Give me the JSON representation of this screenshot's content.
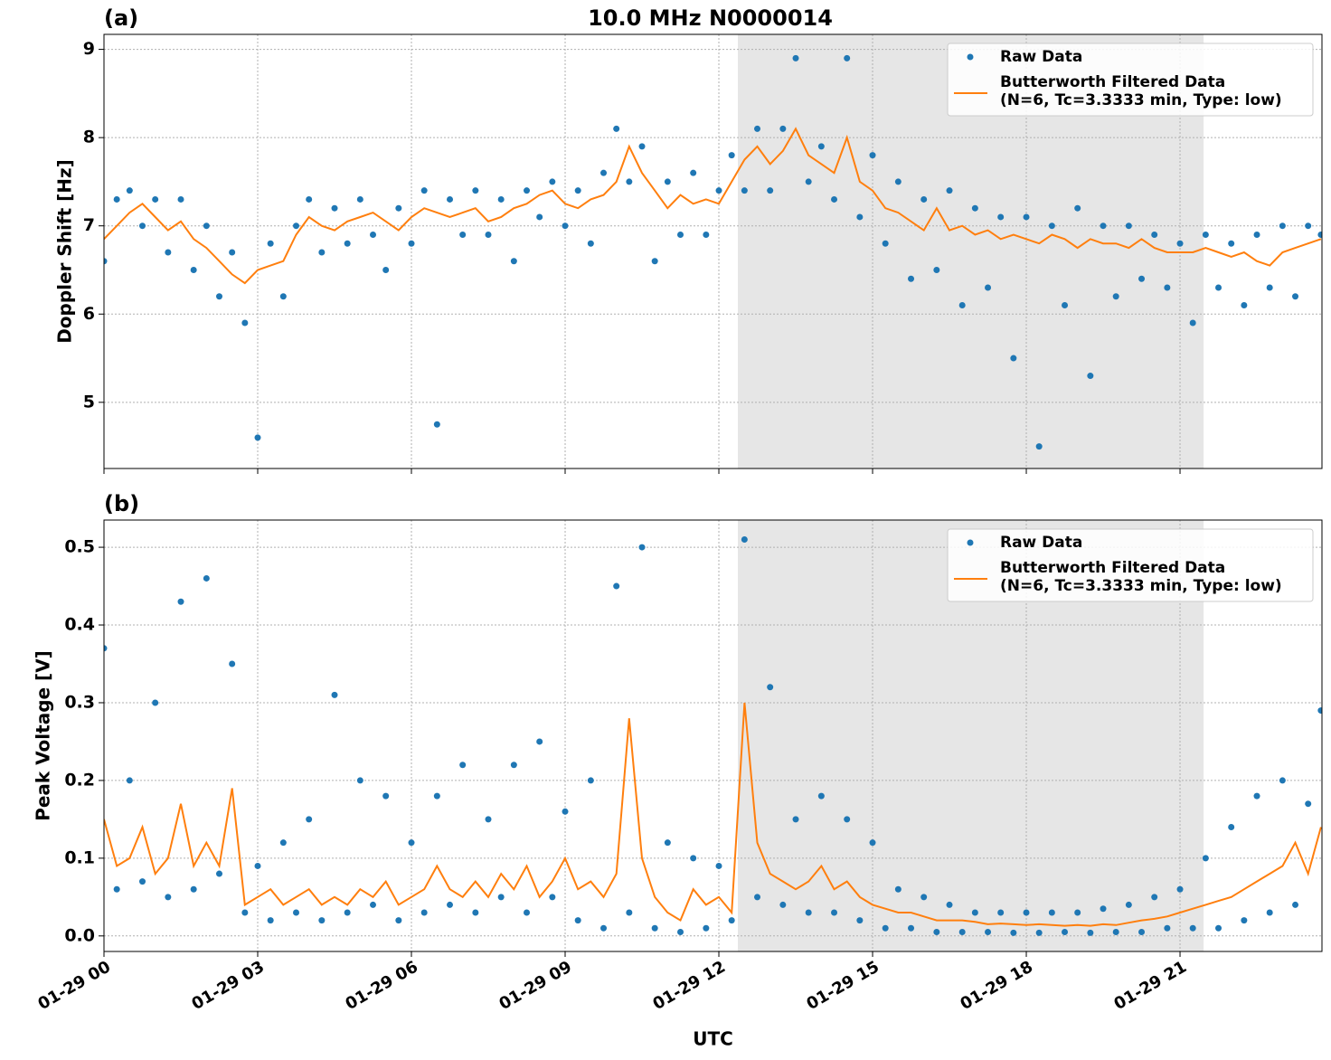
{
  "chart_data": [
    {
      "type": "line",
      "label": "(a)",
      "title": "10.0 MHz N0000014",
      "ylabel": "Doppler Shift [Hz]",
      "xlim": [
        0,
        23.77
      ],
      "xticks": [
        0,
        3,
        6,
        9,
        12,
        15,
        18,
        21
      ],
      "ylim": [
        4.25,
        9.17
      ],
      "yticks": [
        5,
        6,
        7,
        8,
        9
      ],
      "grid": true,
      "shade": [
        12.37,
        21.46
      ],
      "shade_color": "#e6e6e6",
      "legend": "upper right",
      "x": [
        0,
        0.25,
        0.5,
        0.75,
        1,
        1.25,
        1.5,
        1.75,
        2,
        2.25,
        2.5,
        2.75,
        3,
        3.25,
        3.5,
        3.75,
        4,
        4.25,
        4.5,
        4.75,
        5,
        5.25,
        5.5,
        5.75,
        6,
        6.25,
        6.5,
        6.75,
        7,
        7.25,
        7.5,
        7.75,
        8,
        8.25,
        8.5,
        8.75,
        9,
        9.25,
        9.5,
        9.75,
        10,
        10.25,
        10.5,
        10.75,
        11,
        11.25,
        11.5,
        11.75,
        12,
        12.25,
        12.5,
        12.75,
        13,
        13.25,
        13.5,
        13.75,
        14,
        14.25,
        14.5,
        14.75,
        15,
        15.25,
        15.5,
        15.75,
        16,
        16.25,
        16.5,
        16.75,
        17,
        17.25,
        17.5,
        17.75,
        18,
        18.25,
        18.5,
        18.75,
        19,
        19.25,
        19.5,
        19.75,
        20,
        20.25,
        20.5,
        20.75,
        21,
        21.25,
        21.5,
        21.75,
        22,
        22.25,
        22.5,
        22.75,
        23,
        23.25,
        23.5,
        23.75
      ],
      "series": [
        {
          "name": "Raw Data",
          "color": "#1f77b4",
          "style": "dots",
          "values": [
            6.6,
            7.3,
            7.4,
            7.0,
            7.3,
            6.7,
            7.3,
            6.5,
            7.0,
            6.2,
            6.7,
            5.9,
            4.6,
            6.8,
            6.2,
            7.0,
            7.3,
            6.7,
            7.2,
            6.8,
            7.3,
            6.9,
            6.5,
            7.2,
            6.8,
            7.4,
            4.75,
            7.3,
            6.9,
            7.4,
            6.9,
            7.3,
            6.6,
            7.4,
            7.1,
            7.5,
            7.0,
            7.4,
            6.8,
            7.6,
            8.1,
            7.5,
            7.9,
            6.6,
            7.5,
            6.9,
            7.6,
            6.9,
            7.4,
            7.8,
            7.4,
            8.1,
            7.4,
            8.1,
            8.9,
            7.5,
            7.9,
            7.3,
            8.9,
            7.1,
            7.8,
            6.8,
            7.5,
            6.4,
            7.3,
            6.5,
            7.4,
            6.1,
            7.2,
            6.3,
            7.1,
            5.5,
            7.1,
            4.5,
            7.0,
            6.1,
            7.2,
            5.3,
            7.0,
            6.2,
            7.0,
            6.4,
            6.9,
            6.3,
            6.8,
            5.9,
            6.9,
            6.3,
            6.8,
            6.1,
            6.9,
            6.3,
            7.0,
            6.2,
            7.0,
            6.9
          ]
        },
        {
          "name": "Butterworth Filtered Data\n(N=6, Tc=3.3333 min, Type: low)",
          "color": "#ff7f0e",
          "style": "line",
          "values": [
            6.85,
            7.0,
            7.15,
            7.25,
            7.1,
            6.95,
            7.05,
            6.85,
            6.75,
            6.6,
            6.45,
            6.35,
            6.5,
            6.55,
            6.6,
            6.9,
            7.1,
            7.0,
            6.95,
            7.05,
            7.1,
            7.15,
            7.05,
            6.95,
            7.1,
            7.2,
            7.15,
            7.1,
            7.15,
            7.2,
            7.05,
            7.1,
            7.2,
            7.25,
            7.35,
            7.4,
            7.25,
            7.2,
            7.3,
            7.35,
            7.5,
            7.9,
            7.6,
            7.4,
            7.2,
            7.35,
            7.25,
            7.3,
            7.25,
            7.5,
            7.75,
            7.9,
            7.7,
            7.85,
            8.1,
            7.8,
            7.7,
            7.6,
            8.0,
            7.5,
            7.4,
            7.2,
            7.15,
            7.05,
            6.95,
            7.2,
            6.95,
            7.0,
            6.9,
            6.95,
            6.85,
            6.9,
            6.85,
            6.8,
            6.9,
            6.85,
            6.75,
            6.85,
            6.8,
            6.8,
            6.75,
            6.85,
            6.75,
            6.7,
            6.7,
            6.7,
            6.75,
            6.7,
            6.65,
            6.7,
            6.6,
            6.55,
            6.7,
            6.75,
            6.8,
            6.85
          ]
        }
      ]
    },
    {
      "type": "line",
      "label": "(b)",
      "xlabel": "UTC",
      "ylabel": "Peak Voltage [V]",
      "xlim": [
        0,
        23.77
      ],
      "xticks": [
        {
          "value": 0,
          "label": "01-29 00"
        },
        {
          "value": 3,
          "label": "01-29 03"
        },
        {
          "value": 6,
          "label": "01-29 06"
        },
        {
          "value": 9,
          "label": "01-29 09"
        },
        {
          "value": 12,
          "label": "01-29 12"
        },
        {
          "value": 15,
          "label": "01-29 15"
        },
        {
          "value": 18,
          "label": "01-29 18"
        },
        {
          "value": 21,
          "label": "01-29 21"
        }
      ],
      "ylim": [
        -0.02,
        0.535
      ],
      "yticks": [
        {
          "value": 0,
          "label": "0.0"
        },
        0.1,
        0.2,
        0.3,
        0.4,
        0.5
      ],
      "grid": true,
      "shade": [
        12.37,
        21.46
      ],
      "shade_color": "#e6e6e6",
      "legend": "upper right",
      "x": [
        0,
        0.25,
        0.5,
        0.75,
        1,
        1.25,
        1.5,
        1.75,
        2,
        2.25,
        2.5,
        2.75,
        3,
        3.25,
        3.5,
        3.75,
        4,
        4.25,
        4.5,
        4.75,
        5,
        5.25,
        5.5,
        5.75,
        6,
        6.25,
        6.5,
        6.75,
        7,
        7.25,
        7.5,
        7.75,
        8,
        8.25,
        8.5,
        8.75,
        9,
        9.25,
        9.5,
        9.75,
        10,
        10.25,
        10.5,
        10.75,
        11,
        11.25,
        11.5,
        11.75,
        12,
        12.25,
        12.5,
        12.75,
        13,
        13.25,
        13.5,
        13.75,
        14,
        14.25,
        14.5,
        14.75,
        15,
        15.25,
        15.5,
        15.75,
        16,
        16.25,
        16.5,
        16.75,
        17,
        17.25,
        17.5,
        17.75,
        18,
        18.25,
        18.5,
        18.75,
        19,
        19.25,
        19.5,
        19.75,
        20,
        20.25,
        20.5,
        20.75,
        21,
        21.25,
        21.5,
        21.75,
        22,
        22.25,
        22.5,
        22.75,
        23,
        23.25,
        23.5,
        23.75
      ],
      "series": [
        {
          "name": "Raw Data",
          "color": "#1f77b4",
          "style": "dots",
          "values": [
            0.37,
            0.06,
            0.2,
            0.07,
            0.3,
            0.05,
            0.43,
            0.06,
            0.46,
            0.08,
            0.35,
            0.03,
            0.09,
            0.02,
            0.12,
            0.03,
            0.15,
            0.02,
            0.31,
            0.03,
            0.2,
            0.04,
            0.18,
            0.02,
            0.12,
            0.03,
            0.18,
            0.04,
            0.22,
            0.03,
            0.15,
            0.05,
            0.22,
            0.03,
            0.25,
            0.05,
            0.16,
            0.02,
            0.2,
            0.01,
            0.45,
            0.03,
            0.5,
            0.01,
            0.12,
            0.005,
            0.1,
            0.01,
            0.09,
            0.02,
            0.51,
            0.05,
            0.32,
            0.04,
            0.15,
            0.03,
            0.18,
            0.03,
            0.15,
            0.02,
            0.12,
            0.01,
            0.06,
            0.01,
            0.05,
            0.005,
            0.04,
            0.005,
            0.03,
            0.005,
            0.03,
            0.004,
            0.03,
            0.004,
            0.03,
            0.005,
            0.03,
            0.004,
            0.035,
            0.005,
            0.04,
            0.005,
            0.05,
            0.01,
            0.06,
            0.01,
            0.1,
            0.01,
            0.14,
            0.02,
            0.18,
            0.03,
            0.2,
            0.04,
            0.17,
            0.29
          ]
        },
        {
          "name": "Butterworth Filtered Data\n(N=6, Tc=3.3333 min, Type: low)",
          "color": "#ff7f0e",
          "style": "line",
          "values": [
            0.15,
            0.09,
            0.1,
            0.14,
            0.08,
            0.1,
            0.17,
            0.09,
            0.12,
            0.09,
            0.19,
            0.04,
            0.05,
            0.06,
            0.04,
            0.05,
            0.06,
            0.04,
            0.05,
            0.04,
            0.06,
            0.05,
            0.07,
            0.04,
            0.05,
            0.06,
            0.09,
            0.06,
            0.05,
            0.07,
            0.05,
            0.08,
            0.06,
            0.09,
            0.05,
            0.07,
            0.1,
            0.06,
            0.07,
            0.05,
            0.08,
            0.28,
            0.1,
            0.05,
            0.03,
            0.02,
            0.06,
            0.04,
            0.05,
            0.03,
            0.3,
            0.12,
            0.08,
            0.07,
            0.06,
            0.07,
            0.09,
            0.06,
            0.07,
            0.05,
            0.04,
            0.035,
            0.03,
            0.03,
            0.025,
            0.02,
            0.02,
            0.02,
            0.018,
            0.015,
            0.016,
            0.015,
            0.014,
            0.015,
            0.014,
            0.013,
            0.014,
            0.013,
            0.015,
            0.014,
            0.017,
            0.02,
            0.022,
            0.025,
            0.03,
            0.035,
            0.04,
            0.045,
            0.05,
            0.06,
            0.07,
            0.08,
            0.09,
            0.12,
            0.08,
            0.14
          ]
        }
      ]
    }
  ]
}
